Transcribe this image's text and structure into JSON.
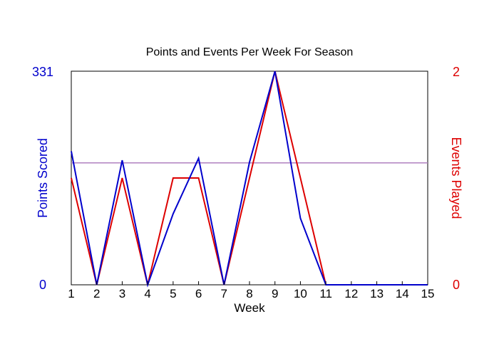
{
  "chart_data": {
    "type": "line",
    "title": "Points and Events Per Week For Season",
    "xlabel": "Week",
    "ylabel_left": "Points Scored",
    "ylabel_right": "Events Played",
    "x": [
      1,
      2,
      3,
      4,
      5,
      6,
      7,
      8,
      9,
      10,
      11,
      12,
      13,
      14,
      15
    ],
    "x_tick_labels": [
      "1",
      "2",
      "3",
      "4",
      "5",
      "6",
      "7",
      "8",
      "9",
      "10",
      "11",
      "12",
      "13",
      "14",
      "15"
    ],
    "ylim_left": [
      0,
      331
    ],
    "ylim_right": [
      0,
      2
    ],
    "y_left_tick_labels": [
      "0",
      "331"
    ],
    "y_right_tick_labels": [
      "0",
      "2"
    ],
    "average_line": {
      "axis": "left",
      "value": 189,
      "color": "#b080c0"
    },
    "series": [
      {
        "axis": "left",
        "color": "#0000cc",
        "values": [
          207,
          0,
          193,
          0,
          110,
          196,
          0,
          190,
          331,
          103,
          0,
          0,
          0,
          0,
          0
        ]
      },
      {
        "axis": "right",
        "color": "#dd0000",
        "values": [
          1,
          0,
          1,
          0,
          1,
          1,
          0,
          1,
          2,
          1,
          0,
          0,
          0,
          0,
          0
        ]
      }
    ],
    "left_axis_color": "#0000cc",
    "right_axis_color": "#dd0000",
    "grid": false
  }
}
